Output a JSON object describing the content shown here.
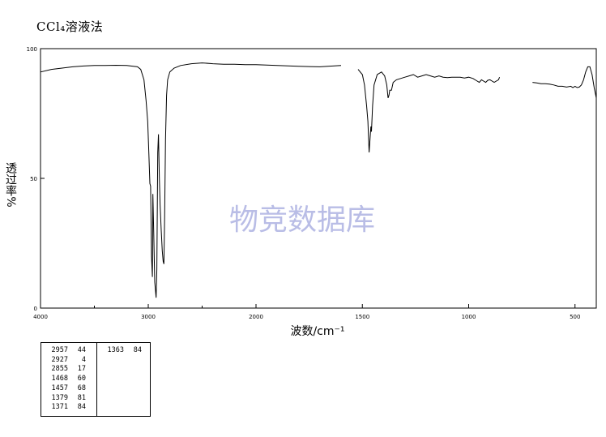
{
  "page_title": "CCl₄溶液法",
  "watermark": "物竞数据库",
  "chart_data": {
    "type": "line",
    "xlabel": "波数/cm⁻¹",
    "ylabel": "透过率%",
    "xlim": [
      4000,
      400
    ],
    "ylim": [
      0,
      100
    ],
    "x_ticks": [
      {
        "value": 4000,
        "label": "4000"
      },
      {
        "value": 3000,
        "label": "3000"
      },
      {
        "value": 2000,
        "label": "2000"
      },
      {
        "value": 1500,
        "label": "1500"
      },
      {
        "value": 1000,
        "label": "1000"
      },
      {
        "value": 500,
        "label": "500"
      }
    ],
    "x_minor_ticks": [
      3500,
      2500
    ],
    "y_ticks": [
      {
        "value": 0,
        "label": "0"
      },
      {
        "value": 50,
        "label": "50"
      },
      {
        "value": 100,
        "label": "100"
      }
    ],
    "series": [
      {
        "color": "#000000",
        "segments": [
          [
            [
              4000,
              91
            ],
            [
              3900,
              92
            ],
            [
              3800,
              92.5
            ],
            [
              3700,
              93
            ],
            [
              3600,
              93.3
            ],
            [
              3500,
              93.5
            ],
            [
              3400,
              93.5
            ],
            [
              3300,
              93.6
            ],
            [
              3200,
              93.5
            ],
            [
              3100,
              93
            ],
            [
              3070,
              92
            ],
            [
              3040,
              88
            ],
            [
              3020,
              80
            ],
            [
              3005,
              72
            ],
            [
              2995,
              60
            ],
            [
              2985,
              48
            ],
            [
              2978,
              47
            ],
            [
              2970,
              20
            ],
            [
              2962,
              12
            ],
            [
              2957,
              44
            ],
            [
              2950,
              30
            ],
            [
              2940,
              10
            ],
            [
              2927,
              4
            ],
            [
              2920,
              15
            ],
            [
              2912,
              60
            ],
            [
              2905,
              67
            ],
            [
              2897,
              50
            ],
            [
              2890,
              40
            ],
            [
              2880,
              30
            ],
            [
              2870,
              22
            ],
            [
              2862,
              18
            ],
            [
              2855,
              17
            ],
            [
              2848,
              35
            ],
            [
              2840,
              65
            ],
            [
              2830,
              82
            ],
            [
              2820,
              88
            ],
            [
              2800,
              91
            ],
            [
              2760,
              92.5
            ],
            [
              2700,
              93.5
            ],
            [
              2600,
              94.2
            ],
            [
              2500,
              94.5
            ],
            [
              2400,
              94.2
            ],
            [
              2300,
              94
            ],
            [
              2200,
              94
            ],
            [
              2100,
              93.8
            ],
            [
              2000,
              93.8
            ],
            [
              1900,
              93.5
            ],
            [
              1800,
              93.2
            ],
            [
              1700,
              93
            ],
            [
              1600,
              93.5
            ]
          ],
          [
            [
              1520,
              92
            ],
            [
              1500,
              90
            ],
            [
              1490,
              86
            ],
            [
              1480,
              78
            ],
            [
              1474,
              72
            ],
            [
              1468,
              60
            ],
            [
              1464,
              65
            ],
            [
              1460,
              70
            ],
            [
              1457,
              68
            ],
            [
              1452,
              78
            ],
            [
              1445,
              86
            ],
            [
              1430,
              90
            ],
            [
              1410,
              91
            ],
            [
              1395,
              89.5
            ],
            [
              1385,
              86
            ],
            [
              1379,
              81
            ],
            [
              1375,
              82
            ],
            [
              1371,
              84
            ],
            [
              1363,
              84
            ],
            [
              1355,
              87
            ],
            [
              1340,
              88
            ],
            [
              1320,
              88.5
            ],
            [
              1300,
              89
            ],
            [
              1280,
              89.5
            ],
            [
              1260,
              90
            ],
            [
              1240,
              89
            ],
            [
              1220,
              89.5
            ],
            [
              1200,
              90
            ],
            [
              1180,
              89.5
            ],
            [
              1160,
              89
            ],
            [
              1140,
              89.5
            ],
            [
              1120,
              89
            ],
            [
              1100,
              88.8
            ],
            [
              1080,
              89
            ],
            [
              1060,
              89
            ],
            [
              1040,
              89
            ],
            [
              1020,
              88.7
            ],
            [
              1000,
              89
            ],
            [
              980,
              88.5
            ],
            [
              960,
              87.5
            ],
            [
              950,
              87
            ],
            [
              940,
              88
            ],
            [
              930,
              87.5
            ],
            [
              920,
              87
            ],
            [
              910,
              87.8
            ],
            [
              900,
              88
            ],
            [
              890,
              87.5
            ],
            [
              880,
              87
            ],
            [
              870,
              87.5
            ],
            [
              860,
              88
            ],
            [
              855,
              89
            ]
          ],
          [
            [
              700,
              87
            ],
            [
              680,
              86.8
            ],
            [
              660,
              86.5
            ],
            [
              640,
              86.5
            ],
            [
              620,
              86.3
            ],
            [
              600,
              86
            ],
            [
              580,
              85.5
            ],
            [
              560,
              85.5
            ],
            [
              540,
              85.2
            ],
            [
              520,
              85.5
            ],
            [
              510,
              85
            ],
            [
              500,
              85.5
            ],
            [
              490,
              85
            ],
            [
              480,
              85.2
            ],
            [
              470,
              86
            ],
            [
              460,
              88
            ],
            [
              450,
              91
            ],
            [
              440,
              93
            ],
            [
              430,
              93
            ],
            [
              420,
              90
            ],
            [
              410,
              85
            ],
            [
              400,
              81
            ]
          ]
        ]
      }
    ]
  },
  "peak_table": {
    "left": [
      {
        "wn": "2957",
        "t": "44"
      },
      {
        "wn": "2927",
        "t": "4"
      },
      {
        "wn": "2855",
        "t": "17"
      },
      {
        "wn": "1468",
        "t": "60"
      },
      {
        "wn": "1457",
        "t": "68"
      },
      {
        "wn": "1379",
        "t": "81"
      },
      {
        "wn": "1371",
        "t": "84"
      }
    ],
    "right": [
      {
        "wn": "1363",
        "t": "84"
      }
    ]
  }
}
